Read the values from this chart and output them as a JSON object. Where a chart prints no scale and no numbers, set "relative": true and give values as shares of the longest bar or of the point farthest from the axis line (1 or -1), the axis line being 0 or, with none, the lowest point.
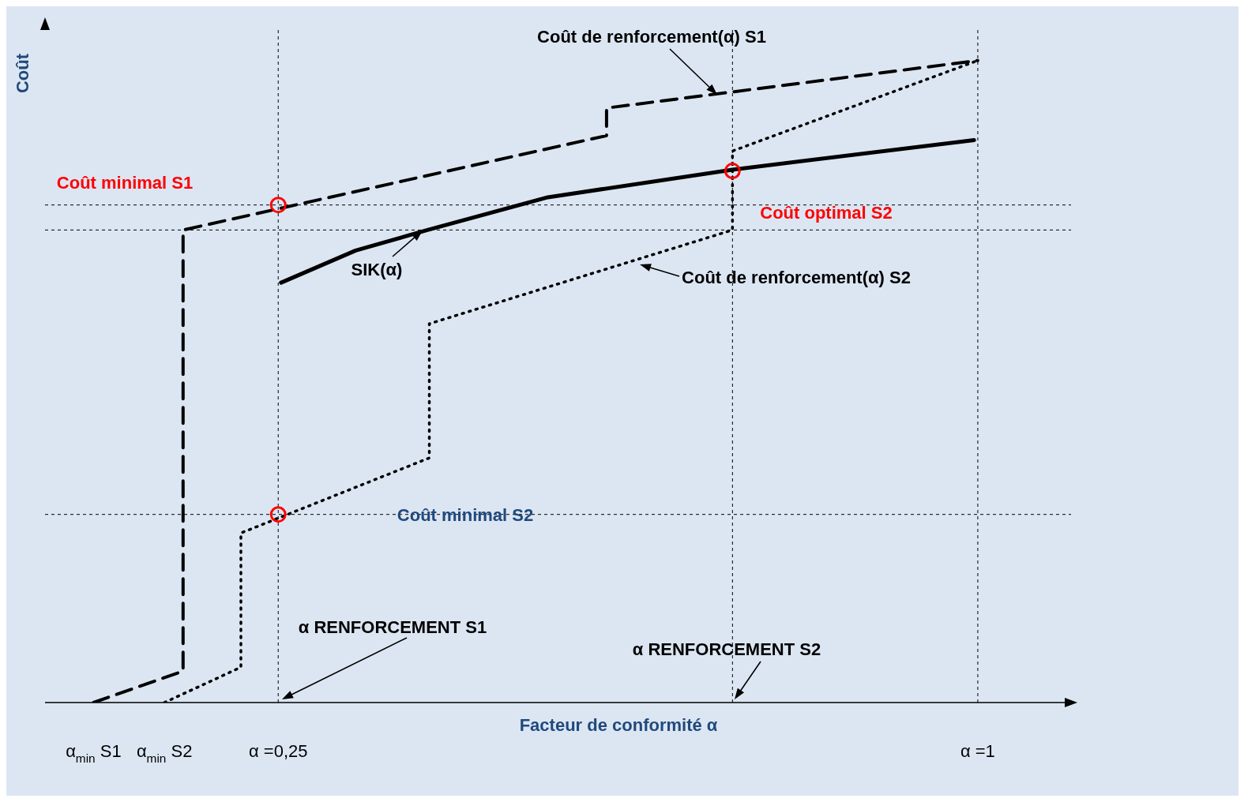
{
  "chart_data": {
    "type": "line",
    "relative": true,
    "tick_labels": "x",
    "xlabel": "Facteur de conformité α",
    "ylabel": "Coût",
    "xlim": [
      0,
      1.1
    ],
    "xticks": [
      {
        "value": 0.052,
        "label": "α$_{min}$ S1"
      },
      {
        "value": 0.128,
        "label": "α$_{min}$ S2"
      },
      {
        "value": 0.25,
        "label": "α =0,25"
      },
      {
        "value": 1,
        "label": "α =1"
      }
    ],
    "series": [
      {
        "name": "Coût de renforcement(α) S1",
        "color": "#000000",
        "line_style": "dashed",
        "x": [
          0.052,
          0.148,
          0.148,
          0.602,
          0.602,
          1.0
        ],
        "values": [
          0,
          0.049,
          0.736,
          0.883,
          0.926,
          1.0
        ]
      },
      {
        "name": "Coût de renforcement(α) S2",
        "color": "#000000",
        "line_style": "dotted",
        "x": [
          0.128,
          0.21,
          0.21,
          0.412,
          0.412,
          0.737,
          0.737,
          1.0
        ],
        "values": [
          0,
          0.055,
          0.264,
          0.381,
          0.59,
          0.736,
          0.859,
          1.0
        ]
      },
      {
        "name": "SIK(α)",
        "color": "#000000",
        "line_style": "solid",
        "x": [
          0.253,
          0.333,
          0.41,
          0.539,
          0.737,
          0.996
        ],
        "values": [
          0.654,
          0.704,
          0.736,
          0.787,
          0.83,
          0.876
        ]
      },
      {
        "type": "scatter",
        "marker": "circle",
        "color": "#ff0000",
        "x": [
          0.25,
          0.737,
          0.25
        ],
        "values": [
          0.775,
          0.828,
          0.293
        ]
      }
    ],
    "ref_lines": [
      {
        "axis": "x",
        "value": 0.25
      },
      {
        "axis": "x",
        "value": 0.737
      },
      {
        "axis": "x",
        "value": 1
      },
      {
        "axis": "y",
        "value": 0.775
      },
      {
        "axis": "y",
        "value": 0.736
      },
      {
        "axis": "y",
        "value": 0.293
      }
    ],
    "annotations": [
      "Coût minimal S1",
      "Coût optimal S2",
      "Coût minimal S2",
      "α RENFORCEMENT S1",
      "α RENFORCEMENT S2"
    ]
  }
}
